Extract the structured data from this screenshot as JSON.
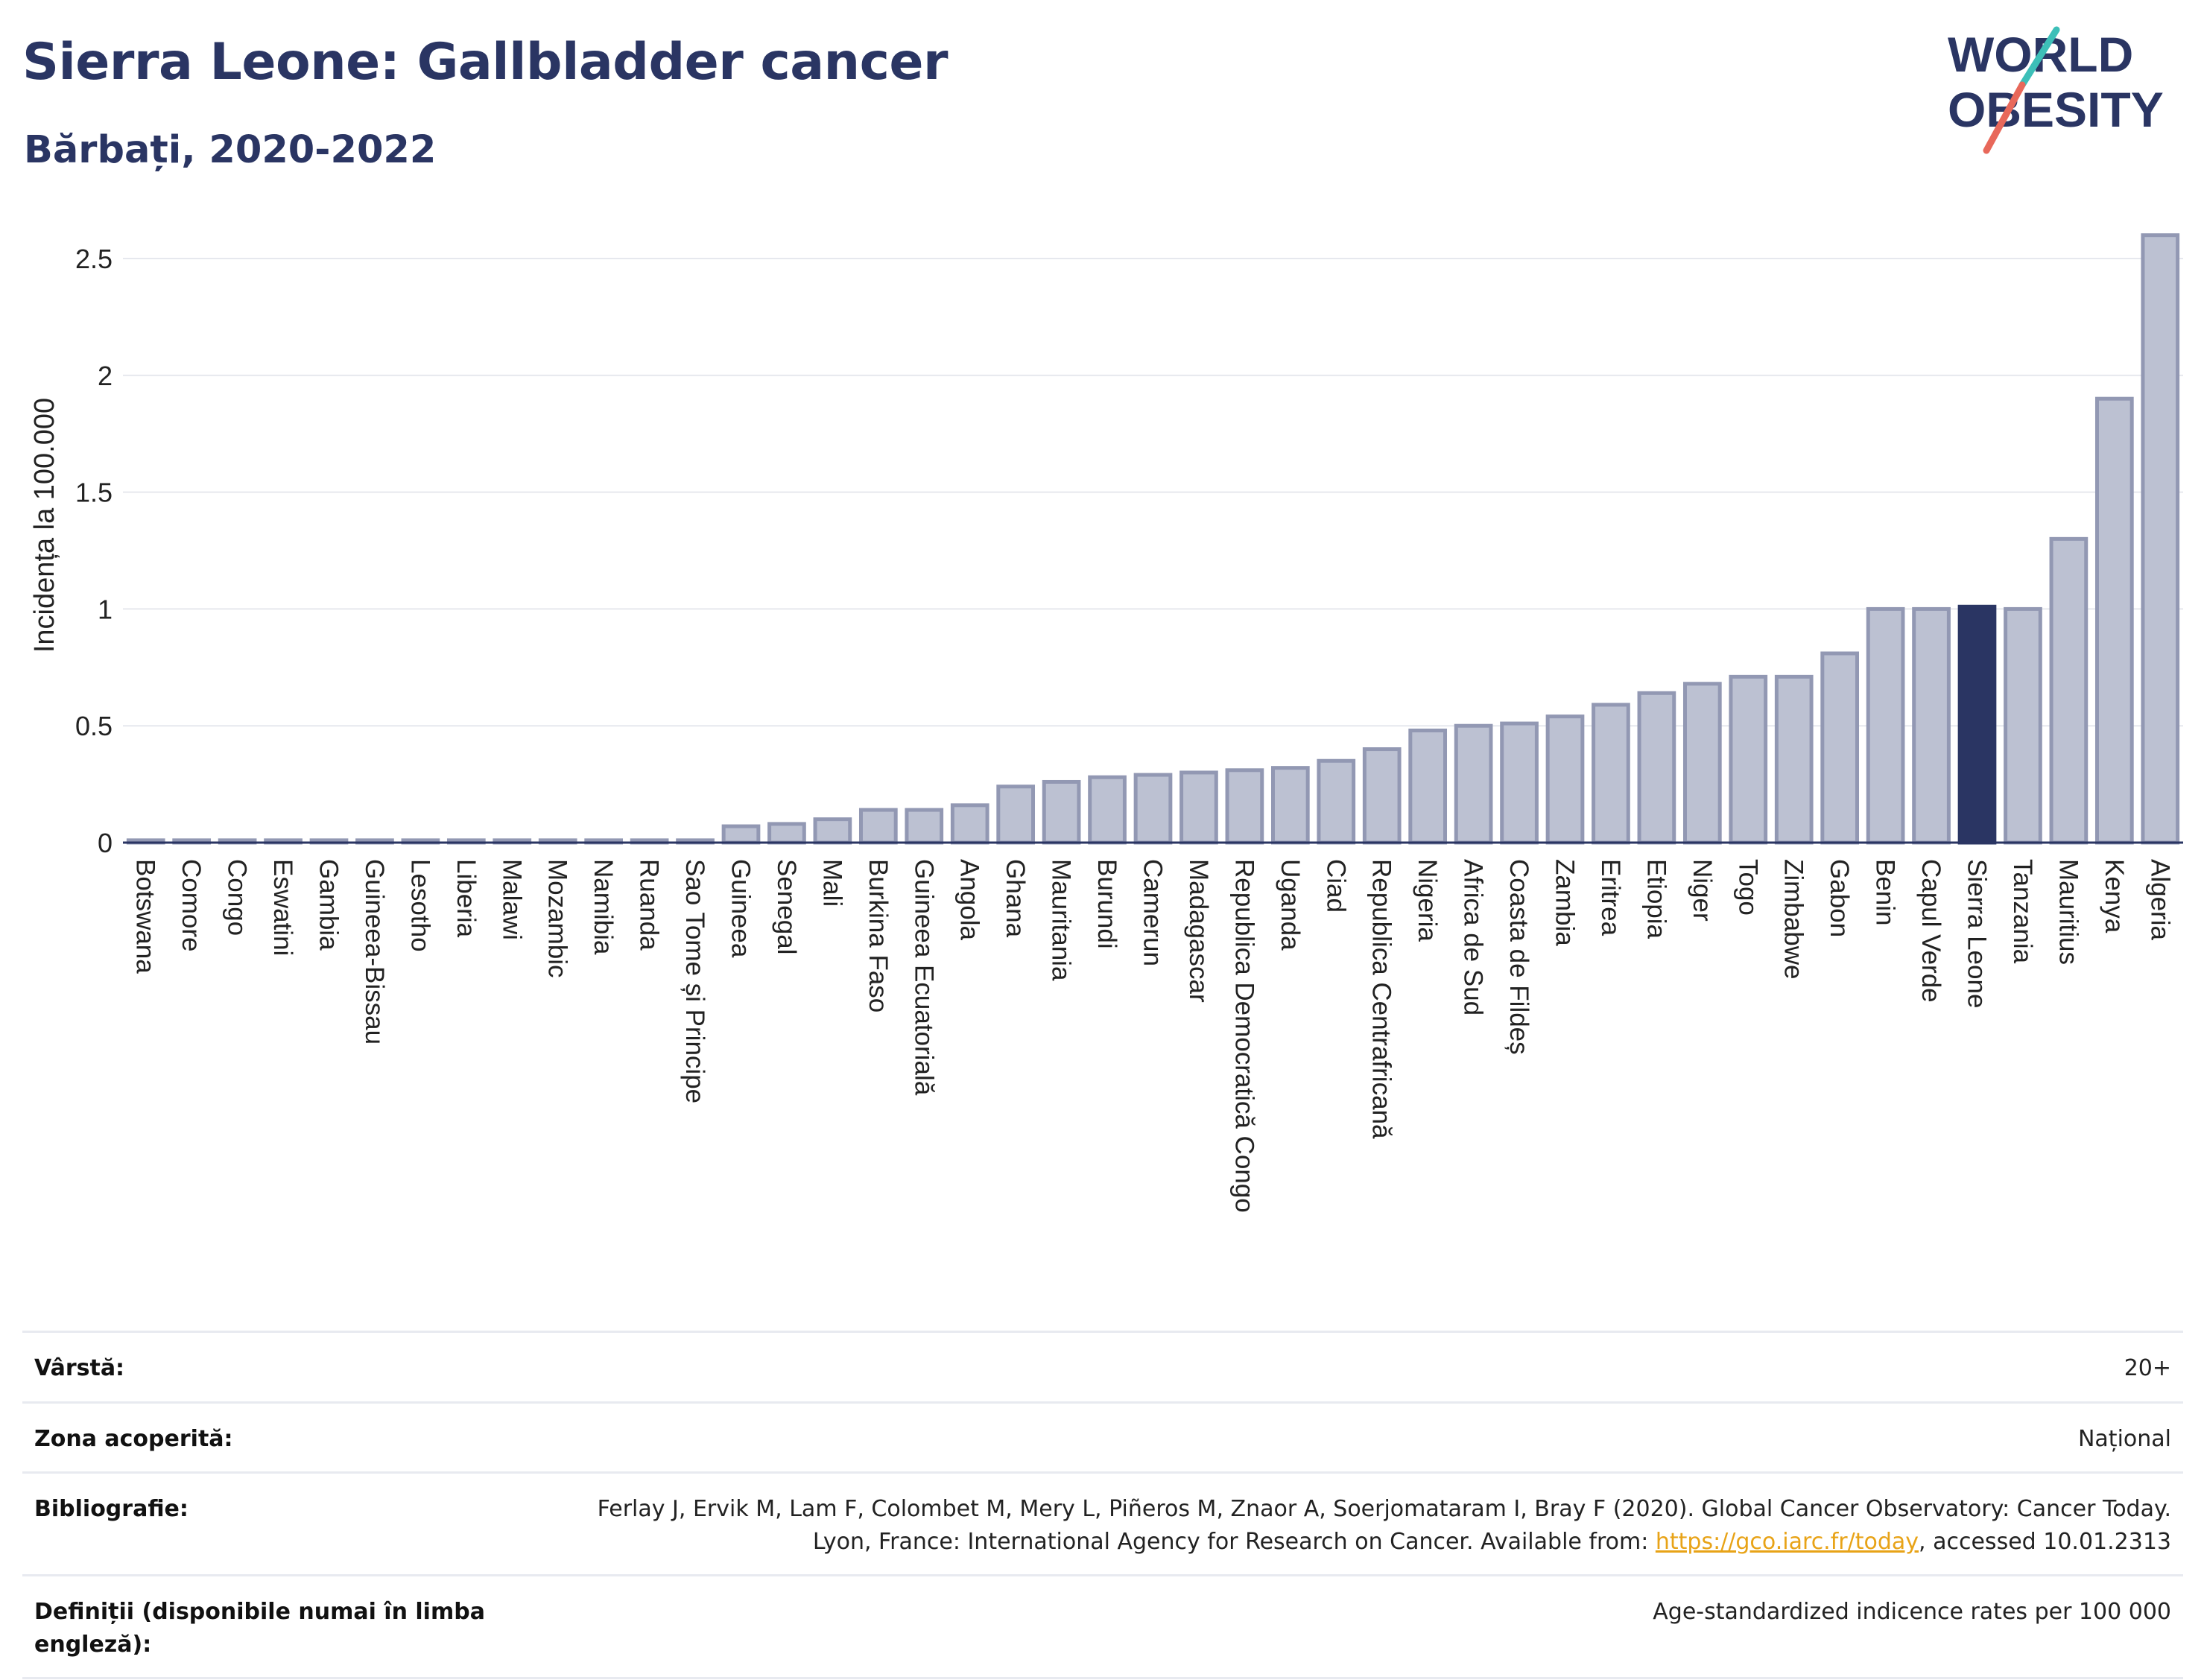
{
  "header": {
    "title": "Sierra Leone: Gallbladder cancer",
    "subtitle": "Bărbați, 2020-2022"
  },
  "logo": {
    "line1": "WORLD",
    "line2": "OBESITY",
    "slash_colors": [
      "#3dbfb8",
      "#e8685a"
    ]
  },
  "colors": {
    "bar": "#bcc1d2",
    "bar_stroke": "#9298b3",
    "highlight": "#2a3563",
    "axis_text": "#222222",
    "grid": "#e6e8ee"
  },
  "chart_data": {
    "type": "bar",
    "ylabel": "Incidența la 100.000",
    "xlabel": "",
    "ylim": [
      0,
      2.65
    ],
    "yticks": [
      0,
      0.5,
      1,
      1.5,
      2,
      2.5
    ],
    "ytick_labels": [
      "0",
      "0.5",
      "1",
      "1.5",
      "2",
      "2.5"
    ],
    "grid": true,
    "highlight_category": "Sierra Leone",
    "categories": [
      "Botswana",
      "Comore",
      "Congo",
      "Eswatini",
      "Gambia",
      "Guineea-Bissau",
      "Lesotho",
      "Liberia",
      "Malawi",
      "Mozambic",
      "Namibia",
      "Ruanda",
      "Sao Tome și Principe",
      "Guineea",
      "Senegal",
      "Mali",
      "Burkina Faso",
      "Guineea Ecuatorială",
      "Angola",
      "Ghana",
      "Mauritania",
      "Burundi",
      "Camerun",
      "Madagascar",
      "Republica Democratică Congo",
      "Uganda",
      "Ciad",
      "Republica Centrafricană",
      "Nigeria",
      "Africa de Sud",
      "Coasta de Fildeș",
      "Zambia",
      "Eritrea",
      "Etiopia",
      "Niger",
      "Togo",
      "Zimbabwe",
      "Gabon",
      "Benin",
      "Capul Verde",
      "Sierra Leone",
      "Tanzania",
      "Mauritius",
      "Kenya",
      "Algeria"
    ],
    "values": [
      0.01,
      0.01,
      0.01,
      0.01,
      0.01,
      0.01,
      0.01,
      0.01,
      0.01,
      0.01,
      0.01,
      0.01,
      0.01,
      0.07,
      0.08,
      0.1,
      0.14,
      0.14,
      0.16,
      0.24,
      0.26,
      0.28,
      0.29,
      0.3,
      0.31,
      0.32,
      0.35,
      0.4,
      0.48,
      0.5,
      0.51,
      0.54,
      0.59,
      0.64,
      0.68,
      0.71,
      0.71,
      0.81,
      1.0,
      1.0,
      1.01,
      1.0,
      1.3,
      1.9,
      2.6
    ]
  },
  "meta": {
    "rows": [
      {
        "label": "Vârstă:",
        "value": "20+"
      },
      {
        "label": "Zona acoperită:",
        "value": "Național"
      },
      {
        "label": "Bibliografie:",
        "value_pre": "Ferlay J, Ervik M, Lam F, Colombet M, Mery L, Piñeros M, Znaor A, Soerjomataram I, Bray F (2020). Global Cancer Observatory: Cancer Today. Lyon, France: International Agency for Research on Cancer. Available from: ",
        "link": "https://gco.iarc.fr/today",
        "value_post": ", accessed 10.01.2313"
      },
      {
        "label": "Definiții (disponibile numai în limba engleză):",
        "value": "Age-standardized indicence rates per 100 000"
      }
    ]
  }
}
